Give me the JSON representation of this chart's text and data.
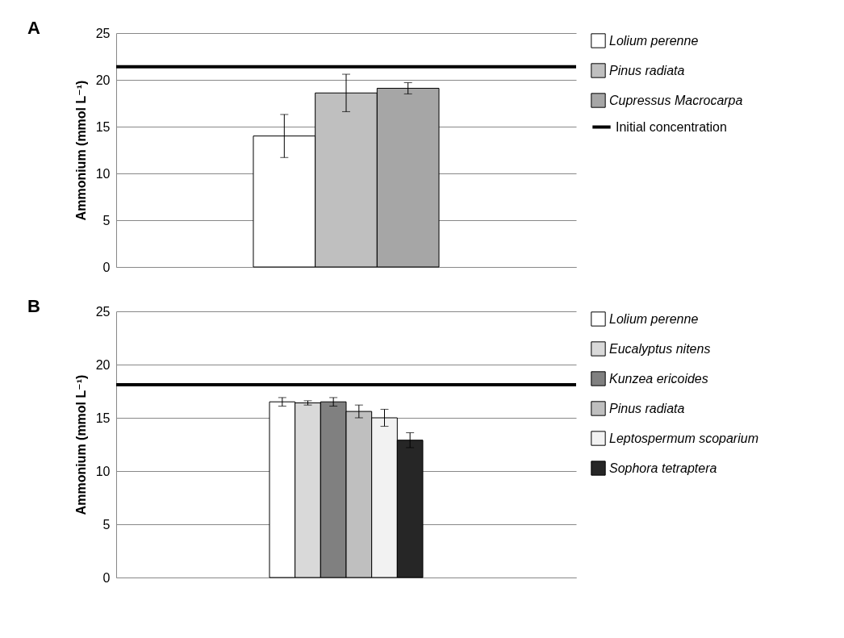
{
  "chart_data": [
    {
      "type": "bar",
      "title": "A",
      "ylabel": "Ammonium (mmol L⁻¹)",
      "categories": [
        null
      ],
      "ylim": [
        0,
        25
      ],
      "yticks": [
        0,
        5,
        10,
        15,
        20,
        25
      ],
      "grid": "y",
      "legend": "right",
      "series": [
        {
          "name": "Lolium perenne",
          "color": "#ffffff",
          "values": [
            14.0
          ],
          "errors": [
            2.3
          ]
        },
        {
          "name": "Pinus radiata",
          "color": "#bfbfbf",
          "values": [
            18.6
          ],
          "errors": [
            2.0
          ]
        },
        {
          "name": "Cupressus Macrocarpa",
          "color": "#a6a6a6",
          "values": [
            19.1
          ],
          "errors": [
            0.6
          ]
        }
      ],
      "ref_lines": [
        {
          "axis": "y",
          "value": 21.4,
          "label": "Initial concentration",
          "color": "#000000"
        }
      ]
    },
    {
      "type": "bar",
      "title": "B",
      "ylabel": "Ammonium (mmol L⁻¹)",
      "categories": [
        null
      ],
      "ylim": [
        0,
        25
      ],
      "yticks": [
        0,
        5,
        10,
        15,
        20,
        25
      ],
      "grid": "y",
      "legend": "right",
      "series": [
        {
          "name": "Lolium perenne",
          "color": "#ffffff",
          "values": [
            16.5
          ],
          "errors": [
            0.4
          ]
        },
        {
          "name": "Eucalyptus nitens",
          "color": "#d9d9d9",
          "values": [
            16.4
          ],
          "errors": [
            0.2
          ]
        },
        {
          "name": "Kunzea ericoides",
          "color": "#808080",
          "values": [
            16.5
          ],
          "errors": [
            0.4
          ]
        },
        {
          "name": "Pinus radiata",
          "color": "#bfbfbf",
          "values": [
            15.6
          ],
          "errors": [
            0.6
          ]
        },
        {
          "name": "Leptospermum scoparium",
          "color": "#f2f2f2",
          "values": [
            15.0
          ],
          "errors": [
            0.8
          ]
        },
        {
          "name": "Sophora tetraptera",
          "color": "#262626",
          "values": [
            12.9
          ],
          "errors": [
            0.7
          ]
        }
      ],
      "ref_lines": [
        {
          "axis": "y",
          "value": 18.1,
          "color": "#000000"
        }
      ]
    }
  ]
}
